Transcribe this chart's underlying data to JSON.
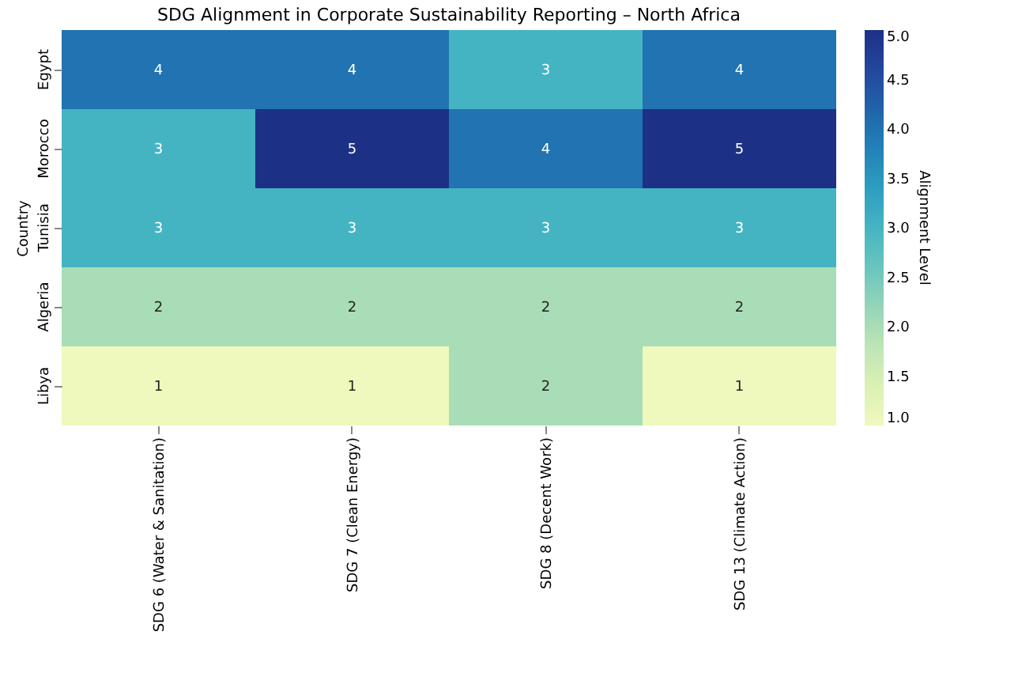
{
  "chart_data": {
    "type": "heatmap",
    "title": "SDG Alignment in Corporate Sustainability Reporting – North Africa",
    "ylabel": "Country",
    "clabel": "Alignment Level",
    "categories": [
      "SDG 6 (Water & Sanitation)",
      "SDG 7 (Clean Energy)",
      "SDG 8 (Decent Work)",
      "SDG 13 (Climate Action)"
    ],
    "y_categories": [
      "Egypt",
      "Morocco",
      "Tunisia",
      "Algeria",
      "Libya"
    ],
    "cells": [
      [
        4,
        4,
        3,
        4
      ],
      [
        3,
        5,
        4,
        5
      ],
      [
        3,
        3,
        3,
        3
      ],
      [
        2,
        2,
        2,
        2
      ],
      [
        1,
        1,
        2,
        1
      ]
    ],
    "clim": [
      1,
      5
    ],
    "cticks": [
      {
        "value": 1,
        "label": "1.0"
      },
      1.5,
      {
        "value": 2,
        "label": "2.0"
      },
      2.5,
      {
        "value": 3,
        "label": "3.0"
      },
      3.5,
      {
        "value": 4,
        "label": "4.0"
      },
      4.5,
      {
        "value": 5,
        "label": "5.0"
      }
    ],
    "data_labels": true
  }
}
